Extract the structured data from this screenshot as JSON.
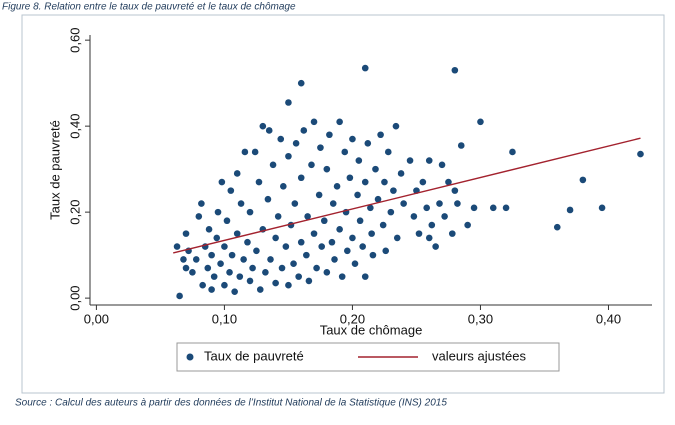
{
  "caption": "Figure 8. Relation entre le taux de pauvreté et le taux de chômage",
  "source": "Source : Calcul des auteurs à partir des données de l’Institut National de la Statistique (INS) 2015",
  "chart_data": {
    "type": "scatter",
    "xlabel": "Taux de chômage",
    "ylabel": "Taux de pauvreté",
    "xlim": [
      -0.005,
      0.434
    ],
    "ylim": [
      -0.016,
      0.612
    ],
    "xticks": [
      {
        "value": 0,
        "label": "0,00"
      },
      {
        "value": 0.1,
        "label": "0,10"
      },
      {
        "value": 0.2,
        "label": "0,20"
      },
      {
        "value": 0.3,
        "label": "0,30"
      },
      {
        "value": 0.4,
        "label": "0,40"
      }
    ],
    "yticks": [
      {
        "value": 0,
        "label": "0,00"
      },
      {
        "value": 0.2,
        "label": "0,20"
      },
      {
        "value": 0.4,
        "label": "0,40"
      },
      {
        "value": 0.6,
        "label": "0,60"
      }
    ],
    "series": [
      {
        "name": "Taux de pauvreté",
        "type": "scatter",
        "color": "#1b4a78",
        "x": [
          0.063,
          0.065,
          0.068,
          0.07,
          0.07,
          0.072,
          0.075,
          0.078,
          0.08,
          0.082,
          0.083,
          0.085,
          0.087,
          0.088,
          0.09,
          0.09,
          0.092,
          0.094,
          0.095,
          0.097,
          0.098,
          0.1,
          0.1,
          0.102,
          0.104,
          0.105,
          0.106,
          0.108,
          0.11,
          0.11,
          0.112,
          0.113,
          0.115,
          0.116,
          0.118,
          0.12,
          0.12,
          0.122,
          0.124,
          0.125,
          0.127,
          0.128,
          0.13,
          0.13,
          0.132,
          0.134,
          0.135,
          0.136,
          0.138,
          0.14,
          0.14,
          0.142,
          0.144,
          0.145,
          0.146,
          0.148,
          0.15,
          0.15,
          0.152,
          0.154,
          0.155,
          0.156,
          0.158,
          0.16,
          0.16,
          0.162,
          0.164,
          0.165,
          0.166,
          0.168,
          0.17,
          0.17,
          0.172,
          0.174,
          0.175,
          0.176,
          0.178,
          0.18,
          0.18,
          0.182,
          0.184,
          0.185,
          0.186,
          0.188,
          0.19,
          0.19,
          0.192,
          0.194,
          0.195,
          0.196,
          0.198,
          0.2,
          0.2,
          0.202,
          0.204,
          0.205,
          0.206,
          0.208,
          0.21,
          0.21,
          0.212,
          0.214,
          0.215,
          0.216,
          0.218,
          0.22,
          0.222,
          0.224,
          0.225,
          0.226,
          0.228,
          0.23,
          0.232,
          0.234,
          0.235,
          0.238,
          0.24,
          0.245,
          0.248,
          0.25,
          0.252,
          0.255,
          0.258,
          0.26,
          0.262,
          0.265,
          0.268,
          0.27,
          0.272,
          0.275,
          0.278,
          0.28,
          0.282,
          0.29,
          0.295,
          0.21,
          0.28,
          0.16,
          0.15,
          0.3,
          0.425,
          0.325,
          0.38,
          0.395,
          0.37,
          0.36,
          0.31,
          0.32,
          0.285,
          0.26
        ],
        "values": [
          0.12,
          0.005,
          0.09,
          0.07,
          0.15,
          0.11,
          0.06,
          0.09,
          0.19,
          0.22,
          0.03,
          0.12,
          0.07,
          0.16,
          0.02,
          0.1,
          0.05,
          0.14,
          0.2,
          0.08,
          0.27,
          0.03,
          0.12,
          0.18,
          0.06,
          0.25,
          0.1,
          0.015,
          0.15,
          0.29,
          0.05,
          0.22,
          0.09,
          0.34,
          0.13,
          0.04,
          0.2,
          0.07,
          0.34,
          0.11,
          0.27,
          0.02,
          0.16,
          0.4,
          0.06,
          0.23,
          0.39,
          0.09,
          0.31,
          0.14,
          0.035,
          0.19,
          0.37,
          0.07,
          0.26,
          0.12,
          0.03,
          0.33,
          0.17,
          0.08,
          0.22,
          0.36,
          0.05,
          0.13,
          0.28,
          0.39,
          0.1,
          0.19,
          0.04,
          0.31,
          0.15,
          0.41,
          0.07,
          0.24,
          0.35,
          0.12,
          0.18,
          0.06,
          0.3,
          0.38,
          0.13,
          0.22,
          0.09,
          0.26,
          0.41,
          0.16,
          0.05,
          0.34,
          0.2,
          0.11,
          0.28,
          0.37,
          0.14,
          0.08,
          0.24,
          0.32,
          0.18,
          0.12,
          0.27,
          0.05,
          0.36,
          0.21,
          0.15,
          0.1,
          0.3,
          0.23,
          0.38,
          0.17,
          0.27,
          0.11,
          0.34,
          0.2,
          0.25,
          0.4,
          0.14,
          0.29,
          0.22,
          0.32,
          0.19,
          0.25,
          0.15,
          0.27,
          0.21,
          0.32,
          0.17,
          0.12,
          0.22,
          0.31,
          0.19,
          0.27,
          0.15,
          0.25,
          0.22,
          0.17,
          0.21,
          0.535,
          0.53,
          0.5,
          0.455,
          0.41,
          0.335,
          0.34,
          0.275,
          0.21,
          0.205,
          0.165,
          0.21,
          0.21,
          0.355,
          0.14
        ]
      },
      {
        "name": "valeurs ajustées",
        "type": "line",
        "color": "#a3222e",
        "x": [
          0.06,
          0.425
        ],
        "values": [
          0.105,
          0.372
        ]
      }
    ]
  }
}
